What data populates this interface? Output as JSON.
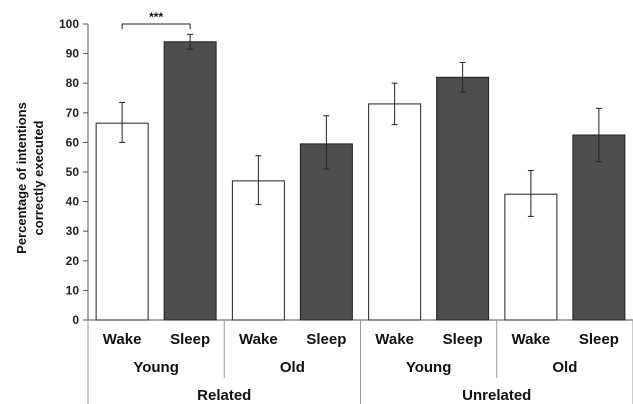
{
  "chart_data": {
    "type": "bar",
    "ylabel_lines": [
      "Percentage of intentions",
      "correctly executed"
    ],
    "ylim": [
      0,
      100
    ],
    "yticks": [
      0,
      10,
      20,
      30,
      40,
      50,
      60,
      70,
      80,
      90,
      100
    ],
    "grid": false,
    "legend": "none",
    "colors": {
      "wake": "#ffffff",
      "sleep": "#4d4d4d",
      "edge": "#222222"
    },
    "groups": [
      {
        "label": "Related",
        "subgroups": [
          {
            "label": "Young",
            "bars": [
              {
                "label": "Wake",
                "value": 66.5,
                "err_low": 60,
                "err_high": 73.5,
                "color": "#ffffff"
              },
              {
                "label": "Sleep",
                "value": 94,
                "err_low": 91.5,
                "err_high": 96.5,
                "color": "#4d4d4d"
              }
            ]
          },
          {
            "label": "Old",
            "bars": [
              {
                "label": "Wake",
                "value": 47,
                "err_low": 39,
                "err_high": 55.5,
                "color": "#ffffff"
              },
              {
                "label": "Sleep",
                "value": 59.5,
                "err_low": 51,
                "err_high": 69,
                "color": "#4d4d4d"
              }
            ]
          }
        ]
      },
      {
        "label": "Unrelated",
        "subgroups": [
          {
            "label": "Young",
            "bars": [
              {
                "label": "Wake",
                "value": 73,
                "err_low": 66,
                "err_high": 80,
                "color": "#ffffff"
              },
              {
                "label": "Sleep",
                "value": 82,
                "err_low": 77,
                "err_high": 87,
                "color": "#4d4d4d"
              }
            ]
          },
          {
            "label": "Old",
            "bars": [
              {
                "label": "Wake",
                "value": 42.5,
                "err_low": 35,
                "err_high": 50.5,
                "color": "#ffffff"
              },
              {
                "label": "Sleep",
                "value": 62.5,
                "err_low": 53.5,
                "err_high": 71.5,
                "color": "#4d4d4d"
              }
            ]
          }
        ]
      }
    ],
    "annotations": [
      {
        "text": "***",
        "from_bar": 0,
        "to_bar": 1,
        "y": 100
      }
    ]
  }
}
